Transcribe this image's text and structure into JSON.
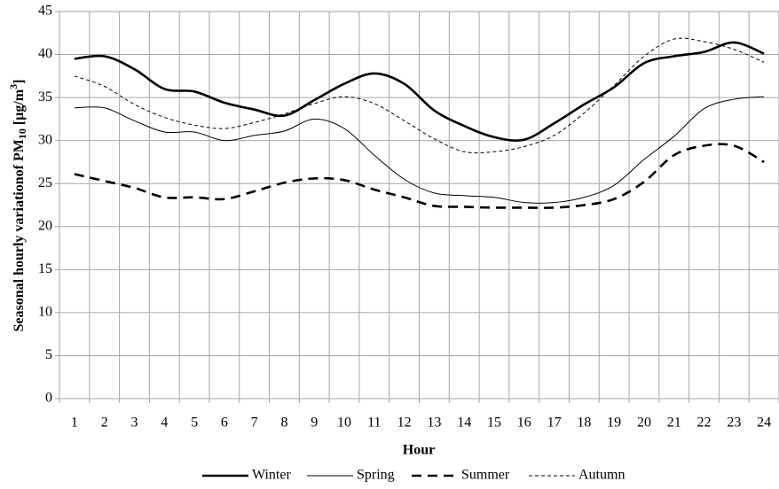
{
  "chart_data": {
    "type": "line",
    "y_label": [
      "Seasonal hourly variationof PM",
      "10",
      " [µg/m",
      "3",
      "]"
    ],
    "x_label": "Hour",
    "categories": [
      "1",
      "2",
      "3",
      "4",
      "5",
      "6",
      "7",
      "8",
      "9",
      "10",
      "11",
      "12",
      "13",
      "14",
      "15",
      "16",
      "17",
      "18",
      "19",
      "20",
      "21",
      "22",
      "23",
      "24"
    ],
    "series": [
      {
        "name": "Winter",
        "color": "#000000",
        "line_width": 2.6,
        "dash": "none",
        "values": [
          39.5,
          39.8,
          38.3,
          36,
          35.7,
          34.4,
          33.6,
          32.9,
          34.7,
          36.6,
          37.8,
          36.6,
          33.5,
          31.7,
          30.4,
          30.1,
          32,
          34.2,
          36.2,
          39,
          39.8,
          40.3,
          41.4,
          40.1
        ]
      },
      {
        "name": "Spring",
        "color": "#000000",
        "line_width": 1,
        "dash": "none",
        "values": [
          33.8,
          33.8,
          32.3,
          31,
          31,
          30,
          30.6,
          31.1,
          32.5,
          31.4,
          28.3,
          25.5,
          23.9,
          23.6,
          23.4,
          22.8,
          22.8,
          23.4,
          24.8,
          27.8,
          30.5,
          33.7,
          34.8,
          35.1
        ]
      },
      {
        "name": "Summer",
        "color": "#000000",
        "line_width": 2.6,
        "dash": "11,7",
        "values": [
          26.1,
          25.3,
          24.5,
          23.4,
          23.4,
          23.2,
          24.1,
          25.1,
          25.6,
          25.4,
          24.3,
          23.4,
          22.4,
          22.3,
          22.2,
          22.2,
          22.2,
          22.5,
          23.2,
          25.2,
          28.3,
          29.4,
          29.4,
          27.5
        ]
      },
      {
        "name": "Autumn",
        "color": "#000000",
        "line_width": 1,
        "dash": "4,3",
        "values": [
          37.5,
          36.3,
          34.2,
          32.7,
          31.8,
          31.4,
          32.1,
          33.1,
          34.3,
          35.1,
          34.3,
          32.3,
          30.2,
          28.7,
          28.7,
          29.3,
          30.6,
          33.2,
          36.4,
          39.8,
          41.8,
          41.5,
          40.6,
          39.1
        ]
      }
    ],
    "ylim": [
      0,
      45
    ],
    "yticks": [
      0,
      5,
      10,
      15,
      20,
      25,
      30,
      35,
      40,
      45
    ],
    "grid": true,
    "legend": "bottom"
  }
}
